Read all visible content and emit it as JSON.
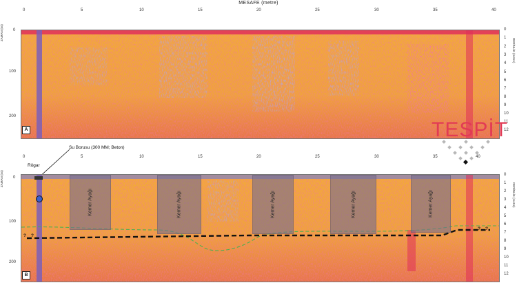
{
  "axis_title": "MESAFE (metre)",
  "x_ticks": [
    "0",
    "5",
    "10",
    "15",
    "20",
    "25",
    "30",
    "35",
    "40"
  ],
  "left_axis_label": "ZAMAN (ns)",
  "right_axis_label": "DERİNLİK (metre)",
  "time_ticks": [
    "0",
    "100",
    "200"
  ],
  "depth_ticks": [
    "0",
    "1",
    "2",
    "3",
    "4",
    "5",
    "6",
    "7",
    "8",
    "9",
    "10",
    "11",
    "12"
  ],
  "panels": [
    {
      "label": "A"
    },
    {
      "label": "B"
    }
  ],
  "annotations": {
    "manhole": "Rögar",
    "pipe": "Su Borusu (300 MM; Beton)",
    "arch_foot": "Kemer Ayağı",
    "unknown": "?"
  },
  "logo": {
    "text": "TESPİT"
  },
  "colors": {
    "radargram_base": "#f2a93a",
    "radargram_red": "#e0305a",
    "radargram_purple": "#7b5fb8",
    "interface_line": "#111111",
    "anomaly_outline": "#4caf50",
    "logo": "#e23b55"
  }
}
